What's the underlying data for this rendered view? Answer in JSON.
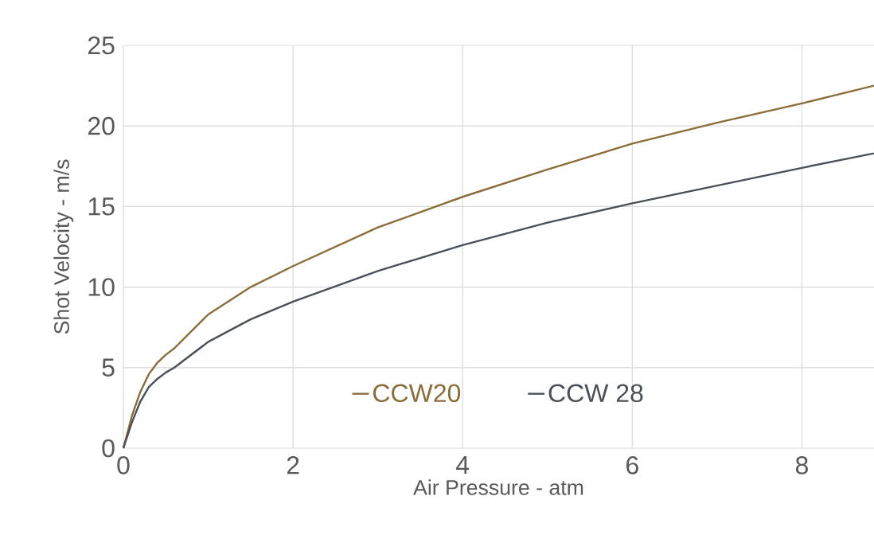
{
  "chart_data": {
    "type": "line",
    "xlabel": "Air Pressure - atm",
    "ylabel": "Shot Velocity - m/s",
    "x": [
      0,
      0.1,
      0.2,
      0.3,
      0.4,
      0.5,
      0.6,
      1,
      1.5,
      2,
      3,
      4,
      5,
      6,
      7,
      8,
      8.85
    ],
    "series": [
      {
        "name": "CCW20",
        "color": "#8b6d3a",
        "values": [
          0,
          2.0,
          3.5,
          4.6,
          5.3,
          5.8,
          6.2,
          8.3,
          10.0,
          11.3,
          13.7,
          15.6,
          17.3,
          18.9,
          20.2,
          21.4,
          22.5
        ]
      },
      {
        "name": "CCW 28",
        "color": "#4a5058",
        "values": [
          0,
          1.6,
          2.9,
          3.8,
          4.3,
          4.7,
          5.0,
          6.6,
          8.0,
          9.1,
          11.0,
          12.6,
          14.0,
          15.2,
          16.3,
          17.4,
          18.3
        ]
      }
    ],
    "xlim": [
      0,
      8.85
    ],
    "ylim": [
      0,
      25
    ],
    "xticks": [
      0,
      2,
      4,
      6,
      8
    ],
    "yticks": [
      0,
      5,
      10,
      15,
      20,
      25
    ],
    "grid": true,
    "legend": "bottom"
  }
}
